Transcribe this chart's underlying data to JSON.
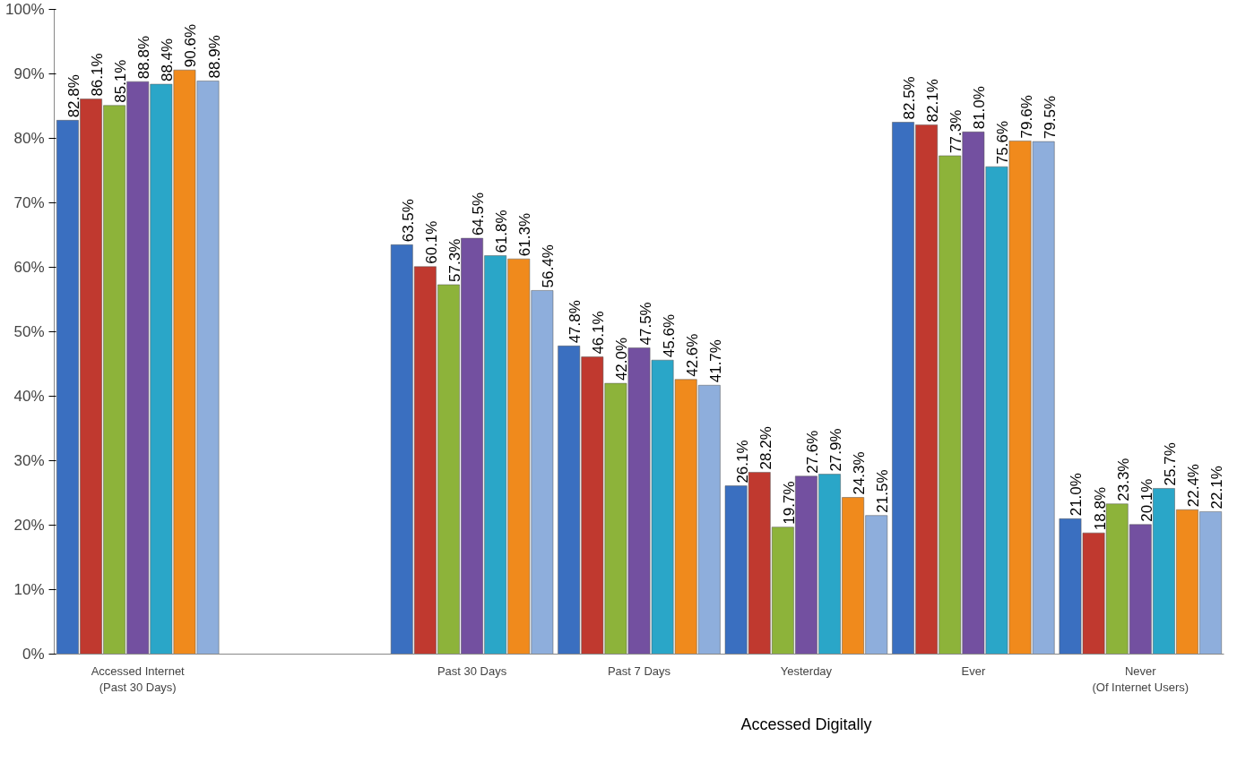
{
  "chart_data": {
    "type": "bar",
    "categories": [
      "Accessed Internet\n(Past 30 Days)",
      null,
      "Past 30 Days",
      "Past 7 Days",
      "Yesterday",
      "Ever",
      "Never\n(Of Internet Users)"
    ],
    "series": [
      {
        "color": "#3a6fc0",
        "values": [
          82.8,
          null,
          63.5,
          47.8,
          26.1,
          82.5,
          21.0
        ],
        "value_labels": [
          "82.8%",
          null,
          "63.5%",
          "47.8%",
          "26.1%",
          "82.5%",
          "21.0%"
        ]
      },
      {
        "color": "#c0392f",
        "values": [
          86.1,
          null,
          60.1,
          46.1,
          28.2,
          82.1,
          18.8
        ],
        "value_labels": [
          "86.1%",
          null,
          "60.1%",
          "46.1%",
          "28.2%",
          "82.1%",
          "18.8%"
        ]
      },
      {
        "color": "#8db33a",
        "values": [
          85.1,
          null,
          57.3,
          42.0,
          19.7,
          77.3,
          23.3
        ],
        "value_labels": [
          "85.1%",
          null,
          "57.3%",
          "42.0%",
          "19.7%",
          "77.3%",
          "23.3%"
        ]
      },
      {
        "color": "#7350a0",
        "values": [
          88.8,
          null,
          64.5,
          47.5,
          27.6,
          81.0,
          20.1
        ],
        "value_labels": [
          "88.8%",
          null,
          "64.5%",
          "47.5%",
          "27.6%",
          "81.0%",
          "20.1%"
        ]
      },
      {
        "color": "#2aa6c8",
        "values": [
          88.4,
          null,
          61.8,
          45.6,
          27.9,
          75.6,
          25.7
        ],
        "value_labels": [
          "88.4%",
          null,
          "61.8%",
          "45.6%",
          "27.9%",
          "75.6%",
          "25.7%"
        ]
      },
      {
        "color": "#f08a1c",
        "values": [
          90.6,
          null,
          61.3,
          42.6,
          24.3,
          79.6,
          22.4
        ],
        "value_labels": [
          "90.6%",
          null,
          "61.3%",
          "42.6%",
          "24.3%",
          "79.6%",
          "22.4%"
        ]
      },
      {
        "color": "#8eaedc",
        "values": [
          88.9,
          null,
          56.4,
          41.7,
          21.5,
          79.5,
          22.1
        ],
        "value_labels": [
          "88.9%",
          null,
          "56.4%",
          "41.7%",
          "21.5%",
          "79.5%",
          "22.1%"
        ]
      }
    ],
    "ylim": [
      0,
      100
    ],
    "yticks": [
      {
        "value": 0,
        "label": "0%"
      },
      {
        "value": 10,
        "label": "10%"
      },
      {
        "value": 20,
        "label": "20%"
      },
      {
        "value": 30,
        "label": "30%"
      },
      {
        "value": 40,
        "label": "40%"
      },
      {
        "value": 50,
        "label": "50%"
      },
      {
        "value": 60,
        "label": "60%"
      },
      {
        "value": 70,
        "label": "70%"
      },
      {
        "value": 80,
        "label": "80%"
      },
      {
        "value": 90,
        "label": "90%"
      },
      {
        "value": 100,
        "label": "100%"
      }
    ],
    "grid": false,
    "annotations": [
      "Accessed Digitally"
    ]
  }
}
